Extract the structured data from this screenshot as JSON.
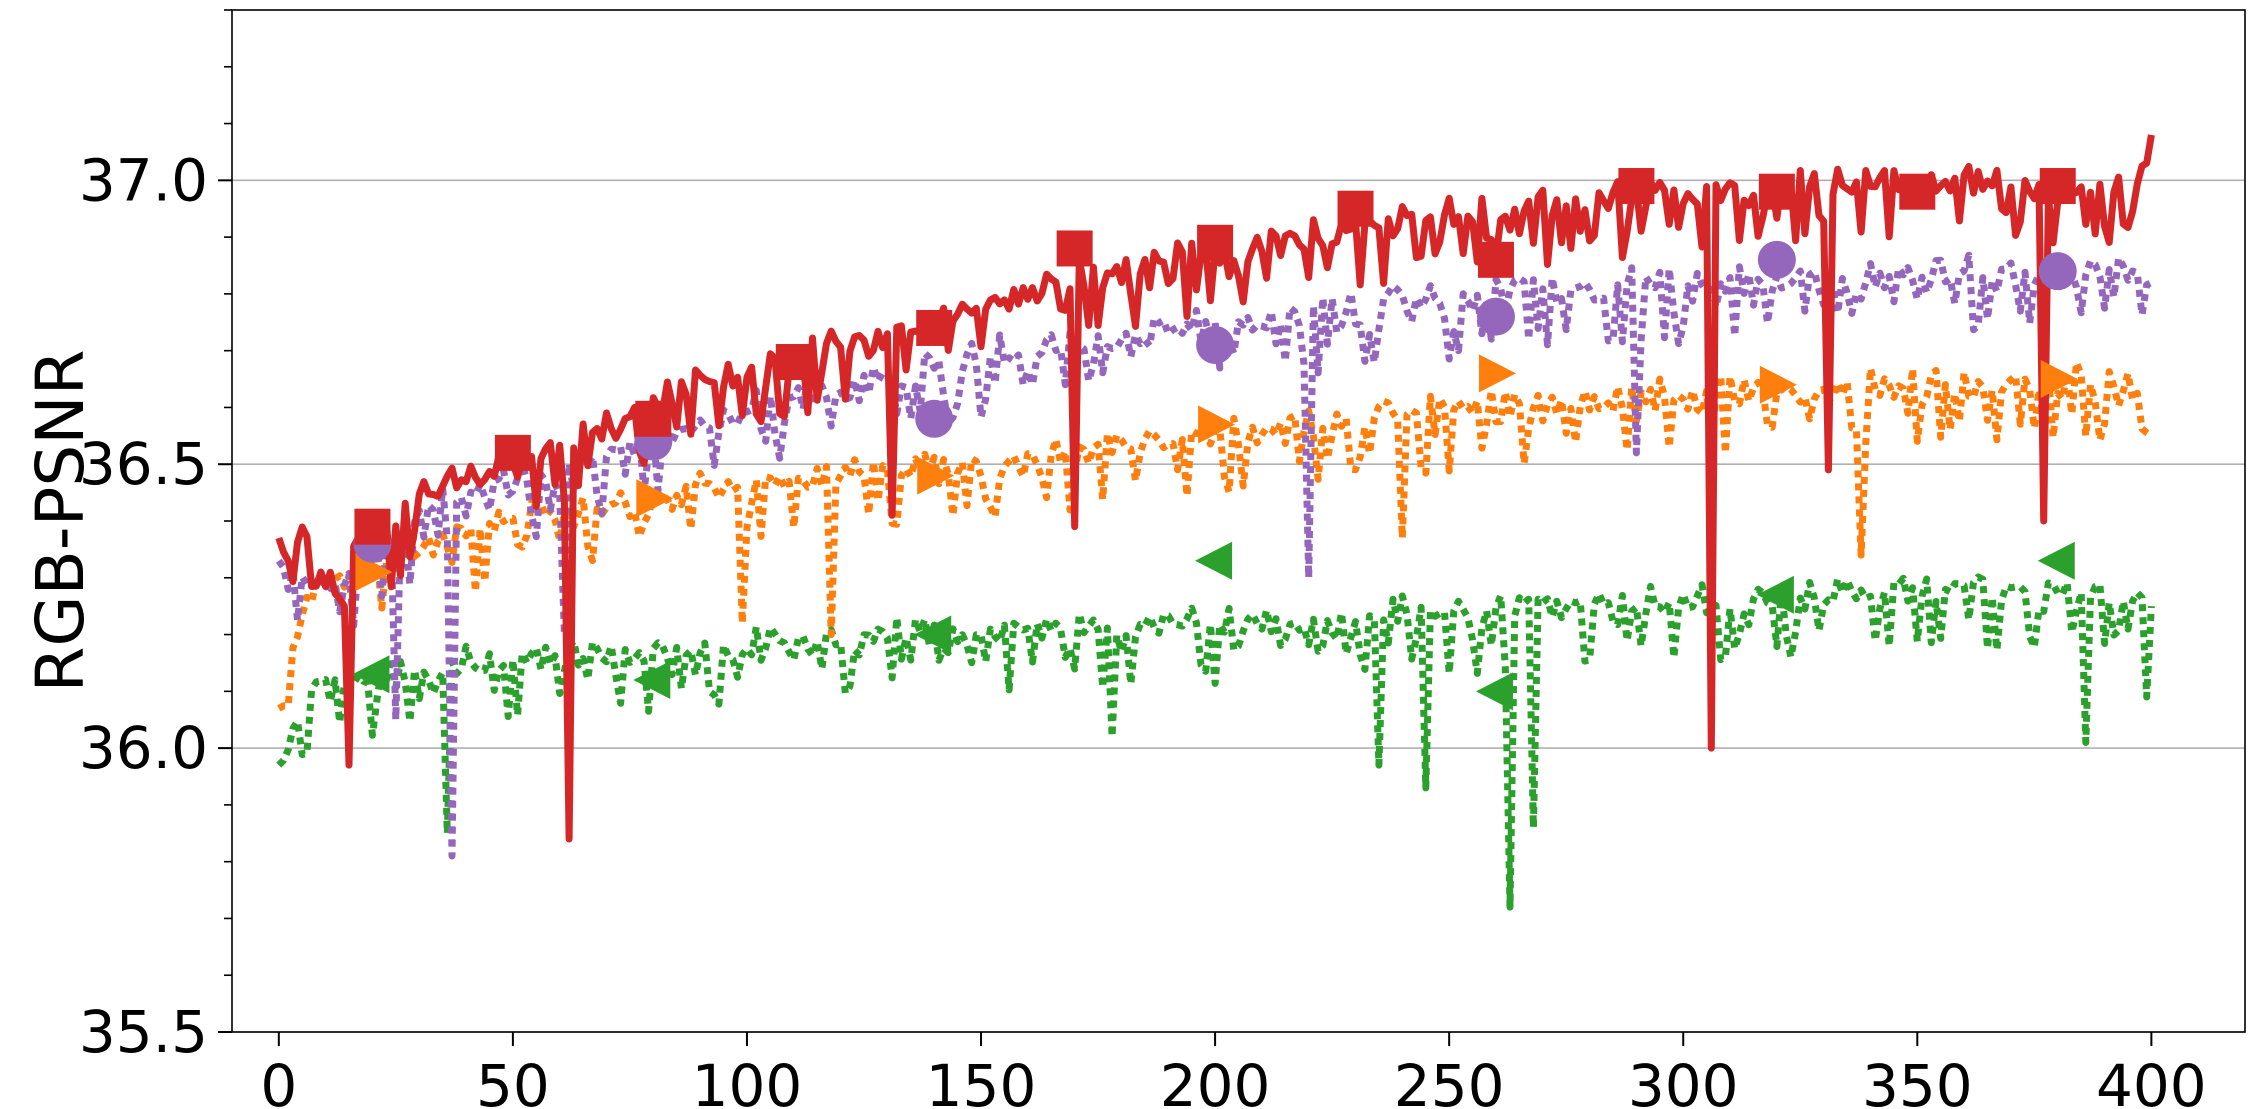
{
  "chart_data": {
    "type": "line",
    "ylabel": "RGB-PSNR",
    "xlabel": "",
    "xlim": [
      -10,
      420
    ],
    "ylim": [
      35.5,
      37.3
    ],
    "x_ticks": [
      0,
      50,
      100,
      150,
      200,
      250,
      300,
      350,
      400
    ],
    "x_tick_labels": [
      "0",
      "50",
      "100",
      "150",
      "200",
      "250",
      "300",
      "350",
      "400"
    ],
    "y_ticks": [
      35.5,
      36.0,
      36.5,
      37.0
    ],
    "y_tick_labels": [
      "35.5",
      "36.0",
      "36.5",
      "37.0"
    ],
    "y_minor_step": 0.1,
    "grid": "y-major",
    "legend": "none",
    "series": [
      {
        "color": "#d62728",
        "style": "solid",
        "marker": "square",
        "x": [
          0,
          5,
          10,
          15,
          20,
          25,
          30,
          35,
          40,
          45,
          50,
          55,
          60,
          65,
          70,
          75,
          80,
          85,
          90,
          95,
          100,
          105,
          110,
          115,
          120,
          125,
          130,
          135,
          140,
          145,
          150,
          155,
          160,
          165,
          170,
          175,
          180,
          185,
          190,
          195,
          200,
          205,
          210,
          215,
          220,
          225,
          230,
          235,
          240,
          245,
          250,
          255,
          260,
          265,
          270,
          275,
          280,
          285,
          290,
          295,
          300,
          305,
          310,
          315,
          320,
          325,
          330,
          335,
          340,
          345,
          350,
          355,
          360,
          365,
          370,
          375,
          380,
          385,
          390,
          395,
          400
        ],
        "y": [
          36.37,
          36.4,
          36.3,
          36.38,
          36.4,
          36.4,
          36.45,
          36.47,
          36.48,
          36.51,
          36.52,
          36.53,
          36.55,
          36.57,
          36.58,
          36.6,
          36.6,
          36.65,
          36.65,
          36.66,
          36.68,
          36.69,
          36.7,
          36.71,
          36.72,
          36.73,
          36.74,
          36.75,
          36.76,
          36.77,
          36.79,
          36.8,
          36.82,
          36.83,
          36.84,
          36.85,
          36.86,
          36.86,
          36.87,
          36.88,
          36.88,
          36.89,
          36.9,
          36.9,
          36.91,
          36.92,
          36.93,
          36.93,
          36.94,
          36.94,
          36.95,
          36.95,
          36.96,
          36.96,
          36.97,
          36.97,
          36.97,
          36.98,
          36.98,
          36.99,
          36.99,
          36.99,
          37.0,
          37.0,
          37.0,
          37.0,
          37.0,
          37.0,
          37.01,
          37.01,
          37.01,
          37.01,
          37.01,
          37.01,
          37.0,
          37.0,
          37.0,
          37.0,
          37.0,
          37.0,
          37.08
        ],
        "dips": [
          [
            15,
            35.97
          ],
          [
            62,
            35.84
          ],
          [
            131,
            36.41
          ],
          [
            170,
            36.39
          ],
          [
            306,
            36.0
          ],
          [
            331,
            36.49
          ],
          [
            377,
            36.4
          ]
        ],
        "marker_points": [
          [
            20,
            36.39
          ],
          [
            50,
            36.52
          ],
          [
            80,
            36.58
          ],
          [
            110,
            36.68
          ],
          [
            140,
            36.74
          ],
          [
            170,
            36.88
          ],
          [
            200,
            36.89
          ],
          [
            230,
            36.95
          ],
          [
            260,
            36.86
          ],
          [
            290,
            36.99
          ],
          [
            320,
            36.98
          ],
          [
            350,
            36.98
          ],
          [
            380,
            36.99
          ]
        ]
      },
      {
        "color": "#9467bd",
        "style": "dotted",
        "marker": "circle",
        "x": [
          0,
          5,
          10,
          15,
          20,
          25,
          30,
          35,
          40,
          45,
          50,
          55,
          60,
          65,
          70,
          75,
          80,
          85,
          90,
          95,
          100,
          105,
          110,
          115,
          120,
          125,
          130,
          135,
          140,
          145,
          150,
          155,
          160,
          165,
          170,
          175,
          180,
          185,
          190,
          195,
          200,
          205,
          210,
          215,
          220,
          225,
          230,
          235,
          240,
          245,
          250,
          255,
          260,
          265,
          270,
          275,
          280,
          285,
          290,
          295,
          300,
          305,
          310,
          315,
          320,
          325,
          330,
          335,
          340,
          345,
          350,
          355,
          360,
          365,
          370,
          375,
          380,
          385,
          390,
          395,
          400
        ],
        "y": [
          36.33,
          36.3,
          36.3,
          36.32,
          36.35,
          36.38,
          36.42,
          36.44,
          36.45,
          36.47,
          36.48,
          36.49,
          36.5,
          36.52,
          36.53,
          36.54,
          36.55,
          36.57,
          36.58,
          36.6,
          36.61,
          36.62,
          36.64,
          36.64,
          36.65,
          36.66,
          36.67,
          36.67,
          36.68,
          36.69,
          36.7,
          36.71,
          36.72,
          36.72,
          36.73,
          36.73,
          36.74,
          36.74,
          36.75,
          36.75,
          36.76,
          36.76,
          36.77,
          36.77,
          36.78,
          36.78,
          36.79,
          36.79,
          36.8,
          36.8,
          36.8,
          36.8,
          36.81,
          36.81,
          36.82,
          36.82,
          36.82,
          36.82,
          36.83,
          36.83,
          36.83,
          36.83,
          36.84,
          36.84,
          36.84,
          36.84,
          36.84,
          36.84,
          36.84,
          36.85,
          36.85,
          36.85,
          36.85,
          36.85,
          36.85,
          36.85,
          36.85,
          36.85,
          36.85,
          36.85,
          36.82
        ],
        "dips": [
          [
            25,
            36.05
          ],
          [
            37,
            35.81
          ],
          [
            61,
            36.2
          ],
          [
            220,
            36.3
          ],
          [
            290,
            36.52
          ]
        ],
        "marker_points": [
          [
            20,
            36.36
          ],
          [
            80,
            36.54
          ],
          [
            140,
            36.58
          ],
          [
            200,
            36.71
          ],
          [
            260,
            36.76
          ],
          [
            320,
            36.86
          ],
          [
            380,
            36.84
          ]
        ]
      },
      {
        "color": "#ff7f0e",
        "style": "dotted",
        "marker": "triangle-right",
        "x": [
          0,
          5,
          10,
          15,
          20,
          25,
          30,
          35,
          40,
          45,
          50,
          55,
          60,
          65,
          70,
          75,
          80,
          85,
          90,
          95,
          100,
          105,
          110,
          115,
          120,
          125,
          130,
          135,
          140,
          145,
          150,
          155,
          160,
          165,
          170,
          175,
          180,
          185,
          190,
          195,
          200,
          205,
          210,
          215,
          220,
          225,
          230,
          235,
          240,
          245,
          250,
          255,
          260,
          265,
          270,
          275,
          280,
          285,
          290,
          295,
          300,
          305,
          310,
          315,
          320,
          325,
          330,
          335,
          340,
          345,
          350,
          355,
          360,
          365,
          370,
          375,
          380,
          385,
          390,
          395,
          400
        ],
        "y": [
          36.07,
          36.25,
          36.3,
          36.32,
          36.33,
          36.35,
          36.37,
          36.38,
          36.39,
          36.4,
          36.41,
          36.42,
          36.43,
          36.43,
          36.44,
          36.44,
          36.45,
          36.46,
          36.47,
          36.47,
          36.48,
          36.48,
          36.49,
          36.49,
          36.5,
          36.5,
          36.5,
          36.51,
          36.51,
          36.51,
          36.52,
          36.52,
          36.53,
          36.53,
          36.54,
          36.54,
          36.55,
          36.55,
          36.56,
          36.56,
          36.56,
          36.57,
          36.57,
          36.57,
          36.58,
          36.58,
          36.59,
          36.59,
          36.6,
          36.6,
          36.6,
          36.61,
          36.61,
          36.61,
          36.62,
          36.62,
          36.62,
          36.62,
          36.63,
          36.63,
          36.63,
          36.63,
          36.64,
          36.64,
          36.64,
          36.64,
          36.64,
          36.65,
          36.65,
          36.65,
          36.65,
          36.65,
          36.65,
          36.65,
          36.66,
          36.66,
          36.66,
          36.66,
          36.66,
          36.66,
          36.55
        ],
        "dips": [
          [
            99,
            36.22
          ],
          [
            118,
            36.2
          ],
          [
            240,
            36.37
          ],
          [
            338,
            36.34
          ]
        ],
        "marker_points": [
          [
            20,
            36.31
          ],
          [
            80,
            36.44
          ],
          [
            140,
            36.48
          ],
          [
            200,
            36.57
          ],
          [
            260,
            36.66
          ],
          [
            320,
            36.64
          ],
          [
            380,
            36.65
          ]
        ]
      },
      {
        "color": "#2ca02c",
        "style": "dotted",
        "marker": "triangle-left",
        "x": [
          0,
          5,
          10,
          15,
          20,
          25,
          30,
          35,
          40,
          45,
          50,
          55,
          60,
          65,
          70,
          75,
          80,
          85,
          90,
          95,
          100,
          105,
          110,
          115,
          120,
          125,
          130,
          135,
          140,
          145,
          150,
          155,
          160,
          165,
          170,
          175,
          180,
          185,
          190,
          195,
          200,
          205,
          210,
          215,
          220,
          225,
          230,
          235,
          240,
          245,
          250,
          255,
          260,
          265,
          270,
          275,
          280,
          285,
          290,
          295,
          300,
          305,
          310,
          315,
          320,
          325,
          330,
          335,
          340,
          345,
          350,
          355,
          360,
          365,
          370,
          375,
          380,
          385,
          390,
          395,
          400
        ],
        "y": [
          35.97,
          36.1,
          36.14,
          36.14,
          36.14,
          36.15,
          36.15,
          36.15,
          36.16,
          36.16,
          36.17,
          36.17,
          36.17,
          36.17,
          36.18,
          36.18,
          36.18,
          36.19,
          36.19,
          36.19,
          36.19,
          36.2,
          36.2,
          36.2,
          36.2,
          36.2,
          36.21,
          36.21,
          36.21,
          36.21,
          36.21,
          36.22,
          36.22,
          36.22,
          36.22,
          36.22,
          36.22,
          36.23,
          36.23,
          36.23,
          36.23,
          36.24,
          36.24,
          36.24,
          36.24,
          36.24,
          36.24,
          36.25,
          36.25,
          36.25,
          36.25,
          36.25,
          36.25,
          36.26,
          36.26,
          36.26,
          36.26,
          36.26,
          36.27,
          36.27,
          36.27,
          36.27,
          36.27,
          36.27,
          36.28,
          36.28,
          36.28,
          36.28,
          36.28,
          36.28,
          36.29,
          36.29,
          36.29,
          36.29,
          36.29,
          36.29,
          36.3,
          36.3,
          36.3,
          36.3,
          36.25
        ],
        "dips": [
          [
            36,
            35.85
          ],
          [
            178,
            36.02
          ],
          [
            235,
            35.97
          ],
          [
            245,
            35.93
          ],
          [
            263,
            35.72
          ],
          [
            268,
            35.86
          ],
          [
            386,
            36.01
          ],
          [
            399,
            36.09
          ]
        ],
        "marker_points": [
          [
            20,
            36.13
          ],
          [
            80,
            36.12
          ],
          [
            140,
            36.2
          ],
          [
            200,
            36.33
          ],
          [
            260,
            36.1
          ],
          [
            320,
            36.27
          ],
          [
            380,
            36.33
          ]
        ]
      }
    ]
  }
}
